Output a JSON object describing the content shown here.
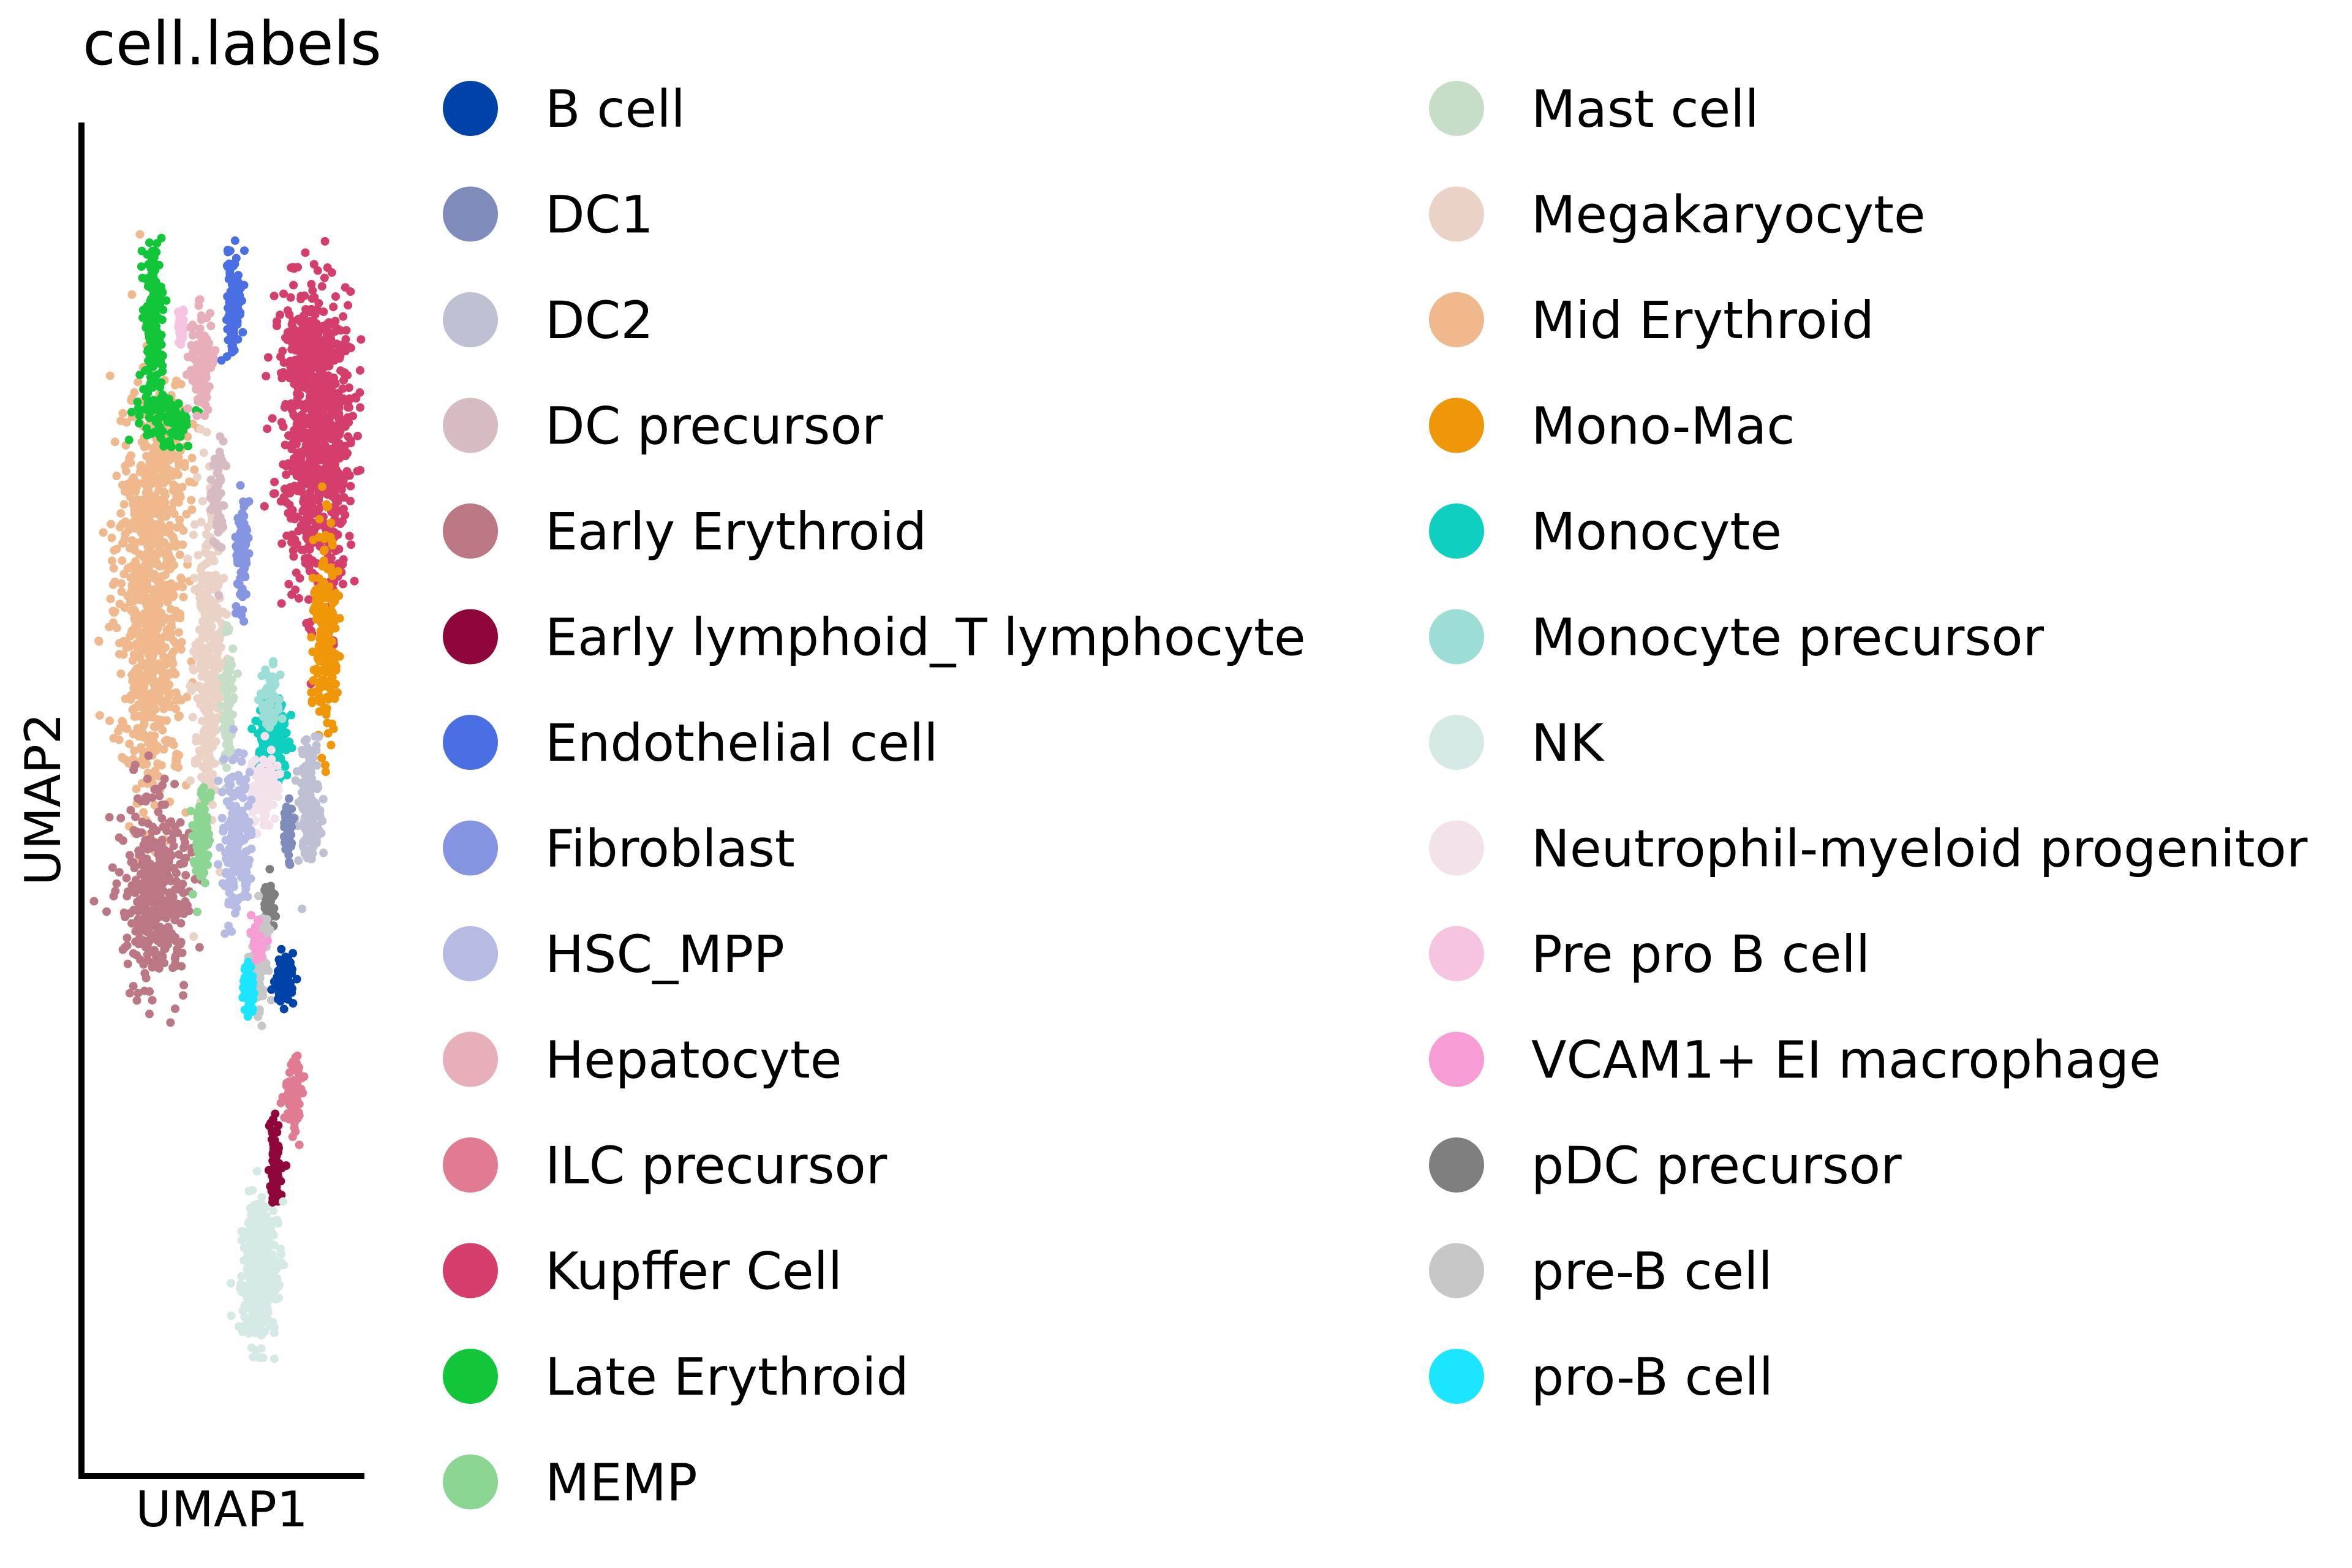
{
  "chart_data": {
    "type": "scatter",
    "title": "cell.labels",
    "xlabel": "UMAP1",
    "ylabel": "UMAP2",
    "ticks": "none",
    "grid": false,
    "legend_position": "right",
    "legend_columns": 2,
    "series": [
      {
        "name": "B cell",
        "color": "#0043a8"
      },
      {
        "name": "DC1",
        "color": "#7f8bba"
      },
      {
        "name": "DC2",
        "color": "#bec1d4"
      },
      {
        "name": "DC precursor",
        "color": "#d6bcc0"
      },
      {
        "name": "Early Erythroid",
        "color": "#bb7784"
      },
      {
        "name": "Early lymphoid_T lymphocyte",
        "color": "#8e063b"
      },
      {
        "name": "Endothelial cell",
        "color": "#4a6fe3"
      },
      {
        "name": "Fibroblast",
        "color": "#8595e1"
      },
      {
        "name": "HSC_MPP",
        "color": "#b5bbe3"
      },
      {
        "name": "Hepatocyte",
        "color": "#e6afb9"
      },
      {
        "name": "ILC precursor",
        "color": "#e07b91"
      },
      {
        "name": "Kupffer Cell",
        "color": "#d33f6a"
      },
      {
        "name": "Late Erythroid",
        "color": "#11c638"
      },
      {
        "name": "MEMP",
        "color": "#8dd593"
      },
      {
        "name": "Mast cell",
        "color": "#c6dec7"
      },
      {
        "name": "Megakaryocyte",
        "color": "#ead3c6"
      },
      {
        "name": "Mid Erythroid",
        "color": "#f0b98d"
      },
      {
        "name": "Mono-Mac",
        "color": "#ef9708"
      },
      {
        "name": "Monocyte",
        "color": "#0fcfc0"
      },
      {
        "name": "Monocyte precursor",
        "color": "#9cded6"
      },
      {
        "name": "NK",
        "color": "#d5eae7"
      },
      {
        "name": "Neutrophil-myeloid progenitor",
        "color": "#f3e1eb"
      },
      {
        "name": "Pre pro B cell",
        "color": "#f6c4e1"
      },
      {
        "name": "VCAM1+ EI macrophage",
        "color": "#f79cd4"
      },
      {
        "name": "pDC precursor",
        "color": "#7f7f7f"
      },
      {
        "name": "pre-B cell",
        "color": "#c7c7c7"
      },
      {
        "name": "pro-B cell",
        "color": "#1ce6ff"
      }
    ]
  }
}
